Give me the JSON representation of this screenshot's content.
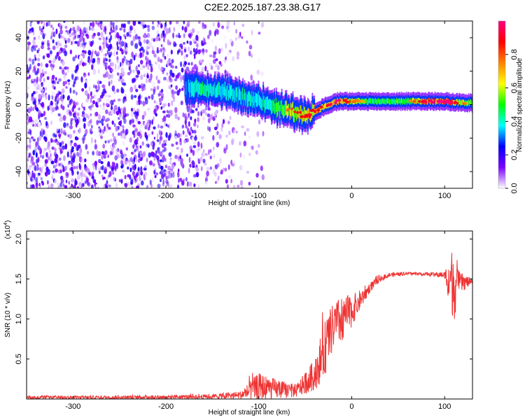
{
  "title": "C2E2.2025.187.23.38.G17",
  "chart_data": [
    {
      "type": "heatmap",
      "xlabel": "Height of straight line (km)",
      "ylabel": "Frequency (Hz)",
      "xlim": [
        -350,
        130
      ],
      "ylim": [
        -50,
        50
      ],
      "xticks": [
        -300,
        -200,
        -100,
        0,
        100
      ],
      "yticks": [
        -40,
        -20,
        0,
        20,
        40
      ],
      "colorbar": {
        "label": "Normalized spectral amplitude",
        "range": [
          0,
          1
        ],
        "ticks": [
          "0.0",
          "0.2",
          "0.4",
          "0.6",
          "0.8"
        ],
        "colors": [
          "#ffffff",
          "#7b00ff",
          "#0000ff",
          "#00ffff",
          "#00ff00",
          "#ffff00",
          "#ff8000",
          "#ff0000",
          "#ff0080"
        ]
      },
      "noise_region_x": [
        -350,
        -120
      ],
      "signal_ridge": {
        "x": [
          -180,
          -160,
          -140,
          -120,
          -100,
          -80,
          -60,
          -45,
          -30,
          -15,
          0,
          20,
          40,
          60,
          80,
          100,
          120,
          130
        ],
        "frequency": [
          10,
          10,
          8,
          5,
          2,
          -2,
          -5,
          -6,
          -1,
          2,
          2,
          2,
          2,
          2,
          2,
          2,
          1,
          1
        ],
        "amplitude": [
          0.35,
          0.5,
          0.45,
          0.45,
          0.45,
          0.55,
          0.75,
          0.8,
          0.8,
          0.9,
          0.7,
          0.55,
          0.55,
          0.6,
          0.85,
          0.95,
          0.7,
          0.5
        ]
      }
    },
    {
      "type": "line",
      "xlabel": "Height of straight line (km)",
      "ylabel": "SNR (10 * v/v)",
      "yscale_label": "(x10^4)",
      "xlim": [
        -350,
        130
      ],
      "ylim": [
        0,
        2.1
      ],
      "xticks": [
        -300,
        -200,
        -100,
        0,
        100
      ],
      "yticks": [
        "0.5",
        "1.0",
        "1.5",
        "2.0"
      ],
      "line_color": "#ee3333",
      "envelope": {
        "x": [
          -350,
          -250,
          -150,
          -120,
          -100,
          -80,
          -60,
          -40,
          -30,
          -20,
          -10,
          0,
          10,
          20,
          30,
          40,
          60,
          80,
          100,
          105,
          110,
          115,
          130
        ],
        "mean": [
          0.02,
          0.02,
          0.03,
          0.05,
          0.15,
          0.12,
          0.1,
          0.3,
          0.6,
          0.9,
          1.0,
          1.1,
          1.25,
          1.4,
          1.5,
          1.55,
          1.57,
          1.56,
          1.55,
          1.5,
          1.45,
          1.45,
          1.47
        ],
        "noise": [
          0.02,
          0.02,
          0.03,
          0.05,
          0.18,
          0.12,
          0.08,
          0.2,
          0.35,
          0.3,
          0.3,
          0.2,
          0.12,
          0.06,
          0.04,
          0.03,
          0.02,
          0.02,
          0.04,
          0.3,
          0.5,
          0.15,
          0.03
        ]
      }
    }
  ]
}
